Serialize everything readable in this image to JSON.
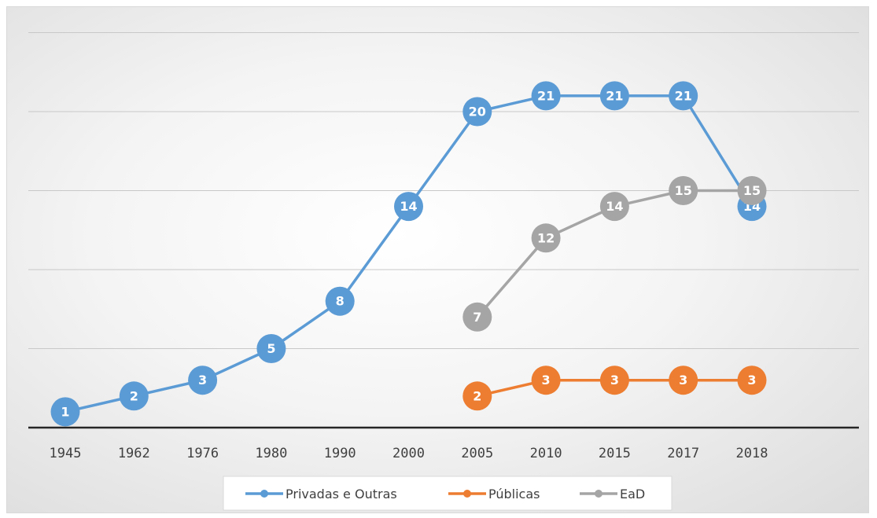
{
  "chart_data": {
    "type": "line",
    "title": "",
    "xlabel": "",
    "ylabel": "",
    "categories": [
      "1945",
      "1962",
      "1976",
      "1980",
      "1990",
      "2000",
      "2005",
      "2010",
      "2015",
      "2017",
      "2018"
    ],
    "ylim": [
      0,
      25
    ],
    "grid": true,
    "legend_position": "bottom",
    "series": [
      {
        "name": "Privadas e Outras",
        "color": "#5b9bd5",
        "values": [
          1,
          2,
          3,
          5,
          8,
          14,
          20,
          21,
          21,
          21,
          14
        ]
      },
      {
        "name": "Públicas",
        "color": "#ed7d31",
        "values": [
          null,
          null,
          null,
          null,
          null,
          null,
          2,
          3,
          3,
          3,
          3
        ]
      },
      {
        "name": "EaD",
        "color": "#a5a5a5",
        "values": [
          null,
          null,
          null,
          null,
          null,
          null,
          7,
          12,
          14,
          15,
          15
        ]
      }
    ]
  }
}
